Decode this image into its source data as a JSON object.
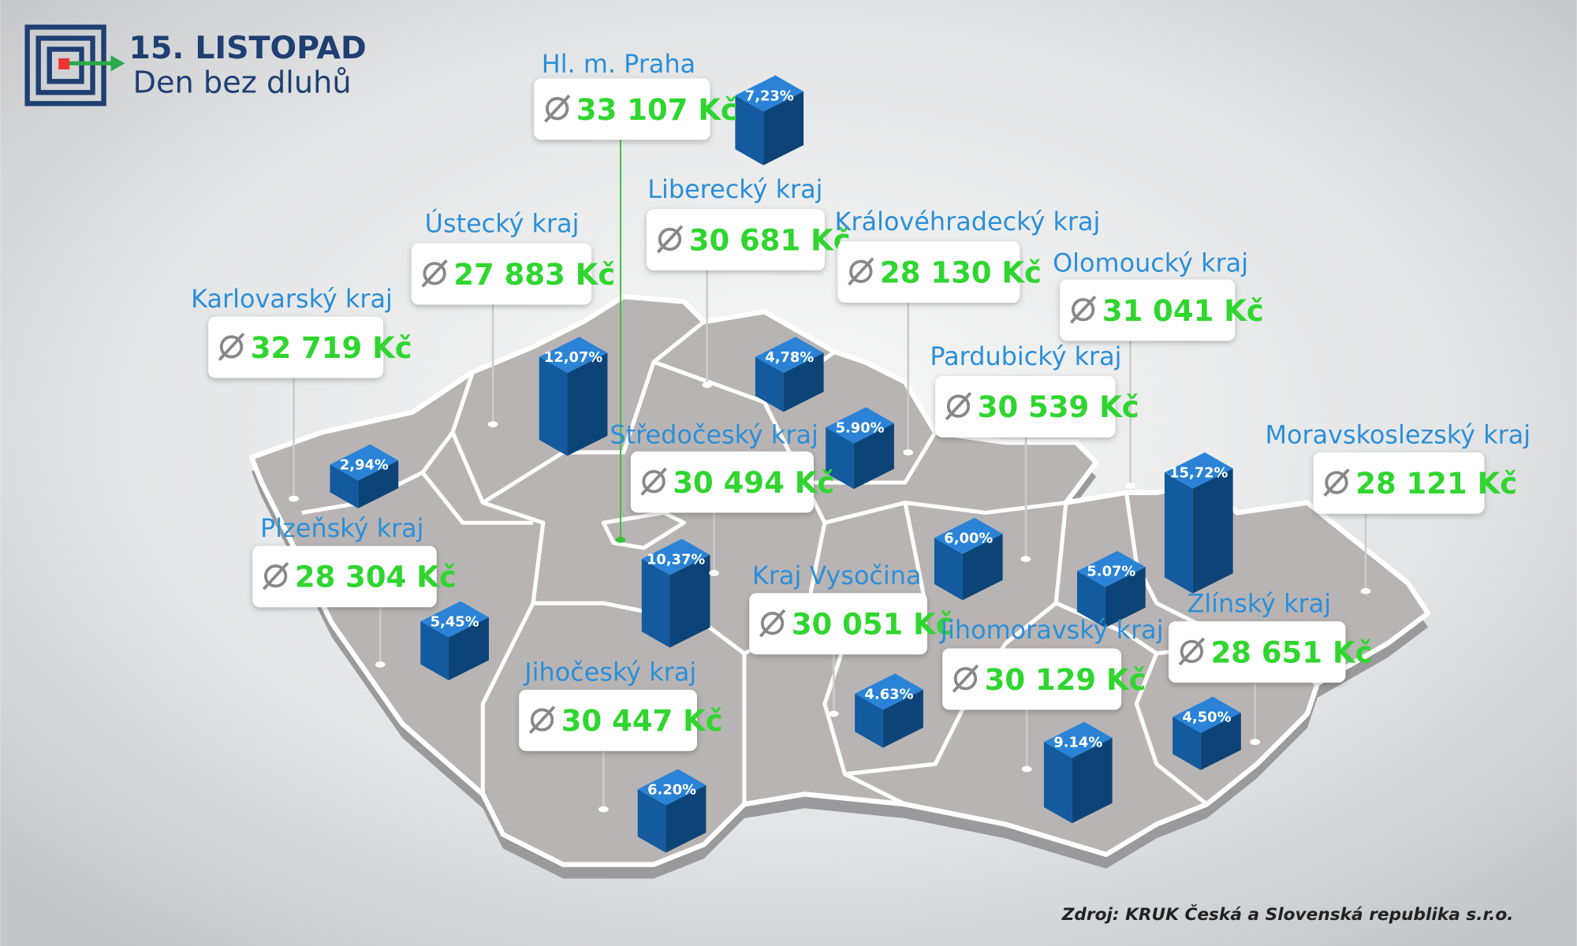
{
  "header": {
    "title": "15. LISTOPAD",
    "subtitle": "Den bez dluhů"
  },
  "regions": [
    {
      "name": "Hl. m. Praha",
      "average": "33 107 Kč",
      "share": "7,23%"
    },
    {
      "name": "Liberecký kraj",
      "average": "30 681 Kč",
      "share": "4,78%"
    },
    {
      "name": "Ústecký kraj",
      "average": "27 883 Kč",
      "share": "12,07%"
    },
    {
      "name": "Královéhradecký kraj",
      "average": "28 130 Kč",
      "share": "5.90%"
    },
    {
      "name": "Olomoucký kraj",
      "average": "31 041 Kč",
      "share": "5.07%"
    },
    {
      "name": "Karlovarský kraj",
      "average": "32 719 Kč",
      "share": "2,94%"
    },
    {
      "name": "Pardubický kraj",
      "average": "30 539 Kč",
      "share": "6,00%"
    },
    {
      "name": "Středočeský kraj",
      "average": "30 494 Kč",
      "share": "10,37%"
    },
    {
      "name": "Moravskoslezský kraj",
      "average": "28 121 Kč",
      "share": "15,72%"
    },
    {
      "name": "Plzeňský kraj",
      "average": "28 304 Kč",
      "share": "5,45%"
    },
    {
      "name": "Kraj Vysočina",
      "average": "30 051 Kč",
      "share": "4.63%"
    },
    {
      "name": "Jihomoravský kraj",
      "average": "30 129 Kč",
      "share": "9.14%"
    },
    {
      "name": "Zlínský kraj",
      "average": "28 651 Kč",
      "share": "4,50%"
    },
    {
      "name": "Jihočeský kraj",
      "average": "30 447 Kč",
      "share": "6.20%"
    }
  ],
  "source": "Zdroj: KRUK Česká a Slovenská republika s.r.o."
}
